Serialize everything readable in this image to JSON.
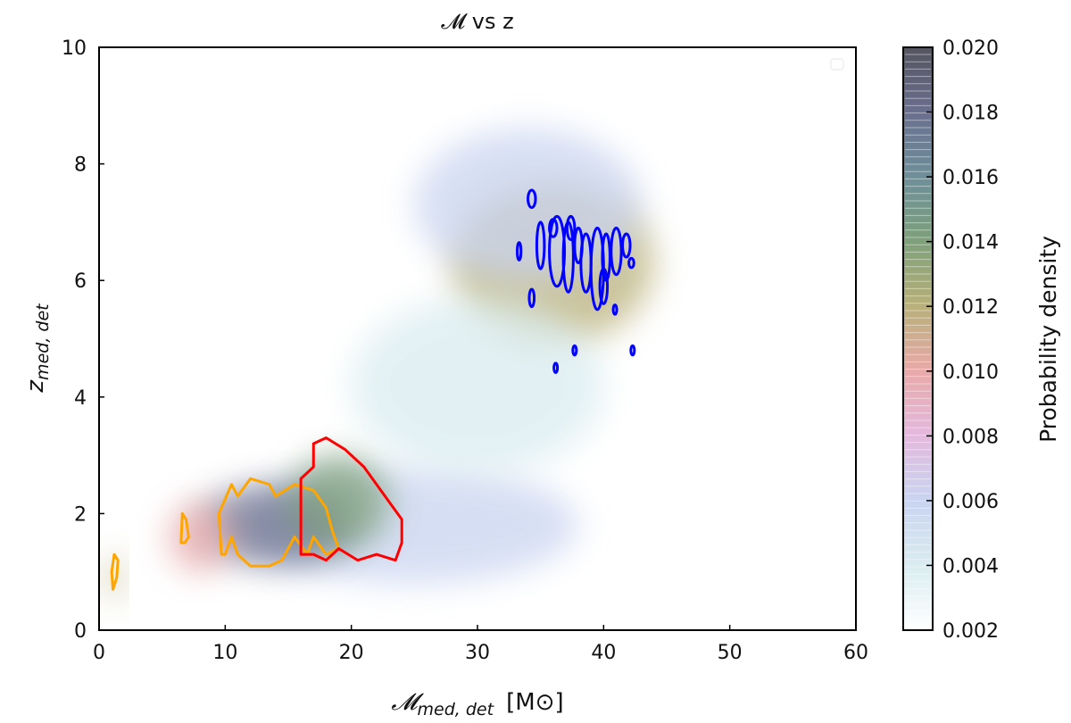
{
  "chart_data": {
    "type": "heatmap",
    "title": "𝓜 vs z",
    "xlabel": "𝓜med, det  [M⊙]",
    "xlabel_main": "𝓜",
    "xlabel_sub": "med, det",
    "xlabel_unit": "[M⊙]",
    "ylabel_main": "z",
    "ylabel_sub": "med, det",
    "xlim": [
      0,
      60
    ],
    "ylim": [
      0,
      10
    ],
    "xticks": [
      "0",
      "10",
      "20",
      "30",
      "40",
      "50",
      "60"
    ],
    "yticks": [
      "0",
      "2",
      "4",
      "6",
      "8",
      "10"
    ],
    "colorbar": {
      "label": "Probability density",
      "range": [
        0.002,
        0.02
      ],
      "ticks": [
        "0.002",
        "0.004",
        "0.006",
        "0.008",
        "0.010",
        "0.012",
        "0.014",
        "0.016",
        "0.018",
        "0.020"
      ],
      "colors": [
        "#ffffff",
        "#d9ecf0",
        "#c9d4f0",
        "#e3b9de",
        "#e8a9a9",
        "#b9b07a",
        "#7ea07a",
        "#6e8f9a",
        "#6a6f8e",
        "#555560"
      ]
    },
    "density_regions": [
      {
        "cx": 25,
        "cy": 1.8,
        "sx": 13,
        "sy": 1.0,
        "level": 0.25
      },
      {
        "cx": 14,
        "cy": 1.8,
        "sx": 6,
        "sy": 0.7,
        "level": 0.9
      },
      {
        "cx": 19,
        "cy": 2.2,
        "sx": 4,
        "sy": 0.8,
        "level": 0.7
      },
      {
        "cx": 8,
        "cy": 1.6,
        "sx": 2.5,
        "sy": 0.6,
        "level": 0.45
      },
      {
        "cx": 1.2,
        "cy": 0.9,
        "sx": 0.6,
        "sy": 0.4,
        "level": 0.5
      },
      {
        "cx": 36,
        "cy": 6.3,
        "sx": 8,
        "sy": 1.4,
        "level": 0.6
      },
      {
        "cx": 34,
        "cy": 7.3,
        "sx": 9,
        "sy": 1.3,
        "level": 0.25
      },
      {
        "cx": 30,
        "cy": 4.2,
        "sx": 10,
        "sy": 1.5,
        "level": 0.12
      }
    ],
    "contours": [
      {
        "color": "#ffa500",
        "closed": true,
        "points": [
          [
            1.1,
            0.7
          ],
          [
            1.0,
            1.0
          ],
          [
            1.2,
            1.3
          ],
          [
            1.5,
            1.2
          ],
          [
            1.4,
            0.9
          ]
        ]
      },
      {
        "color": "#ffa500",
        "closed": true,
        "points": [
          [
            6.5,
            1.5
          ],
          [
            6.6,
            2.0
          ],
          [
            6.9,
            1.9
          ],
          [
            7.1,
            1.6
          ],
          [
            6.8,
            1.5
          ]
        ]
      },
      {
        "color": "#ffa500",
        "closed": true,
        "points": [
          [
            9.7,
            1.3
          ],
          [
            9.5,
            2.0
          ],
          [
            10.5,
            2.5
          ],
          [
            11,
            2.3
          ],
          [
            12,
            2.6
          ],
          [
            13.5,
            2.5
          ],
          [
            14,
            2.3
          ],
          [
            15.5,
            2.5
          ],
          [
            17,
            2.4
          ],
          [
            18,
            2.1
          ],
          [
            18.5,
            1.7
          ],
          [
            19,
            1.4
          ],
          [
            18,
            1.3
          ],
          [
            17,
            1.6
          ],
          [
            16.5,
            1.3
          ],
          [
            15.5,
            1.6
          ],
          [
            14.5,
            1.2
          ],
          [
            13.5,
            1.1
          ],
          [
            12,
            1.1
          ],
          [
            11,
            1.3
          ],
          [
            10.5,
            1.6
          ],
          [
            10,
            1.3
          ]
        ]
      },
      {
        "color": "#ff0000",
        "closed": true,
        "points": [
          [
            16,
            1.3
          ],
          [
            16,
            2.6
          ],
          [
            17,
            2.8
          ],
          [
            17,
            3.2
          ],
          [
            18,
            3.3
          ],
          [
            19.5,
            3.1
          ],
          [
            21,
            2.8
          ],
          [
            22,
            2.5
          ],
          [
            23,
            2.2
          ],
          [
            24,
            1.9
          ],
          [
            24,
            1.5
          ],
          [
            23.5,
            1.2
          ],
          [
            22,
            1.3
          ],
          [
            20.5,
            1.2
          ],
          [
            19,
            1.4
          ],
          [
            18,
            1.2
          ],
          [
            17,
            1.3
          ]
        ]
      }
    ],
    "blue_contours": [
      [
        34.3,
        7.4,
        0.3,
        0.15
      ],
      [
        35,
        6.6,
        0.3,
        0.4
      ],
      [
        36.3,
        6.5,
        0.6,
        0.6
      ],
      [
        37.2,
        6.4,
        0.4,
        0.6
      ],
      [
        38,
        6.6,
        0.3,
        0.3
      ],
      [
        38.6,
        6.3,
        0.4,
        0.5
      ],
      [
        39.5,
        6.2,
        0.5,
        0.7
      ],
      [
        40.2,
        6.4,
        0.3,
        0.4
      ],
      [
        41,
        6.5,
        0.4,
        0.4
      ],
      [
        41.8,
        6.6,
        0.3,
        0.2
      ],
      [
        36,
        6.9,
        0.3,
        0.15
      ],
      [
        37.4,
        6.9,
        0.3,
        0.2
      ],
      [
        40,
        5.9,
        0.3,
        0.3
      ],
      [
        34.3,
        5.7,
        0.2,
        0.15
      ],
      [
        33.3,
        6.5,
        0.15,
        0.15
      ],
      [
        36.2,
        4.5,
        0.1,
        0.08
      ],
      [
        37.7,
        4.8,
        0.1,
        0.08
      ],
      [
        42.3,
        4.8,
        0.1,
        0.08
      ],
      [
        42.2,
        6.3,
        0.2,
        0.08
      ],
      [
        40.9,
        5.5,
        0.1,
        0.08
      ]
    ]
  }
}
